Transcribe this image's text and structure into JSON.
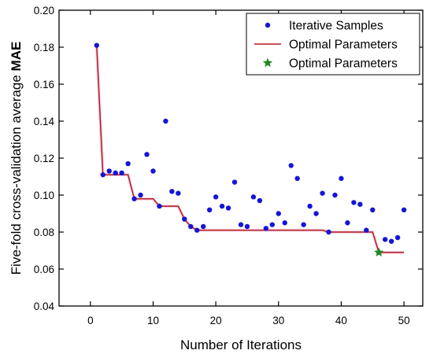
{
  "chart_data": {
    "type": "scatter",
    "xlabel": "Number of Iterations",
    "ylabel_prefix": "Five-fold cross-validation average ",
    "ylabel_bold": "MAE",
    "xlim": [
      -5,
      53
    ],
    "ylim": [
      0.04,
      0.2
    ],
    "xticks": [
      0,
      10,
      20,
      30,
      40,
      50
    ],
    "yticks": [
      0.04,
      0.06,
      0.08,
      0.1,
      0.12,
      0.14,
      0.16,
      0.18,
      0.2
    ],
    "grid": false,
    "legend_position": "top-right",
    "series": [
      {
        "name": "Iterative Samples",
        "kind": "points",
        "color": "#1515d8",
        "x": [
          1,
          2,
          3,
          4,
          5,
          6,
          7,
          8,
          9,
          10,
          11,
          12,
          13,
          14,
          15,
          16,
          17,
          18,
          19,
          20,
          21,
          22,
          23,
          24,
          25,
          26,
          27,
          28,
          29,
          30,
          31,
          32,
          33,
          34,
          35,
          36,
          37,
          38,
          39,
          40,
          41,
          42,
          43,
          44,
          45,
          46,
          47,
          48,
          49,
          50
        ],
        "y": [
          0.181,
          0.111,
          0.113,
          0.112,
          0.112,
          0.117,
          0.098,
          0.1,
          0.122,
          0.113,
          0.094,
          0.14,
          0.102,
          0.101,
          0.087,
          0.083,
          0.081,
          0.083,
          0.092,
          0.099,
          0.094,
          0.093,
          0.107,
          0.084,
          0.083,
          0.099,
          0.097,
          0.082,
          0.084,
          0.09,
          0.085,
          0.116,
          0.109,
          0.084,
          0.094,
          0.09,
          0.101,
          0.08,
          0.1,
          0.109,
          0.085,
          0.096,
          0.095,
          0.081,
          0.092,
          0.069,
          0.076,
          0.075,
          0.077,
          0.092
        ]
      },
      {
        "name": "Optimal Parameters",
        "kind": "step-line",
        "color": "#b01c1c",
        "x": [
          1,
          2,
          6,
          7,
          10,
          11,
          14,
          15,
          16,
          17,
          37,
          38,
          45,
          46,
          50
        ],
        "y": [
          0.181,
          0.111,
          0.111,
          0.098,
          0.098,
          0.094,
          0.094,
          0.087,
          0.083,
          0.081,
          0.081,
          0.08,
          0.08,
          0.069,
          0.069
        ]
      },
      {
        "name": "Optimal Parameters",
        "kind": "star",
        "color": "#1f8a1f",
        "x": [
          46
        ],
        "y": [
          0.069
        ]
      }
    ]
  }
}
